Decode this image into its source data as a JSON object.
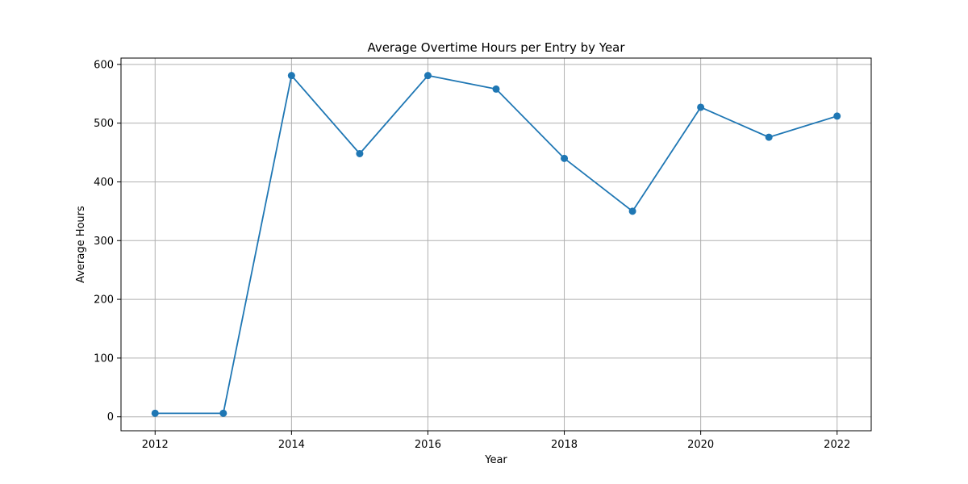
{
  "chart_data": {
    "type": "line",
    "title": "Average Overtime Hours per Entry by Year",
    "xlabel": "Year",
    "ylabel": "Average Hours",
    "x": [
      2012,
      2013,
      2014,
      2015,
      2016,
      2017,
      2018,
      2019,
      2020,
      2021,
      2022
    ],
    "series": [
      {
        "values": [
          6,
          6,
          581,
          448,
          581,
          558,
          440,
          350,
          527,
          476,
          512
        ],
        "color": "#1f77b4",
        "marker": "circle"
      }
    ],
    "xticks": [
      2012,
      2014,
      2016,
      2018,
      2020,
      2022
    ],
    "yticks": [
      0,
      100,
      200,
      300,
      400,
      500,
      600
    ],
    "xlim": [
      2011.5,
      2022.5
    ],
    "ylim": [
      -23.75,
      610.75
    ],
    "grid": true,
    "grid_color": "#b0b0b0",
    "axis_color": "#000000"
  }
}
